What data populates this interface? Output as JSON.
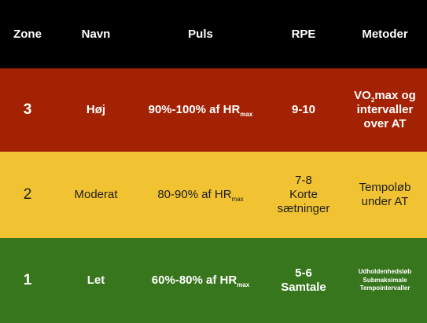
{
  "header": {
    "zone": "Zone",
    "navn": "Navn",
    "puls": "Puls",
    "rpe": "RPE",
    "metoder": "Metoder"
  },
  "zones": [
    {
      "zone": "3",
      "navn": "Høj",
      "puls_main": "90%-100% af HR",
      "puls_sub": "max",
      "rpe_lines": [
        "9-10"
      ],
      "metoder_pre": "VO",
      "metoder_sub": "2",
      "metoder_post": "max og",
      "metoder_lines": [
        "intervaller",
        "over AT"
      ],
      "color": "#a32203"
    },
    {
      "zone": "2",
      "navn": "Moderat",
      "puls_main": "80-90% af HR",
      "puls_sub": "max",
      "rpe_lines": [
        "7-8",
        "Korte",
        "sætninger"
      ],
      "metoder_lines": [
        "Tempoløb",
        "under AT"
      ],
      "color": "#f1c231"
    },
    {
      "zone": "1",
      "navn": "Let",
      "puls_main": "60%-80% af HR",
      "puls_sub": "max",
      "rpe_lines": [
        "5-6",
        "Samtale"
      ],
      "metoder_lines": [
        "Udholdenhedsløb",
        "Submaksimale",
        "Tempointervaller"
      ],
      "color": "#38761d"
    }
  ]
}
